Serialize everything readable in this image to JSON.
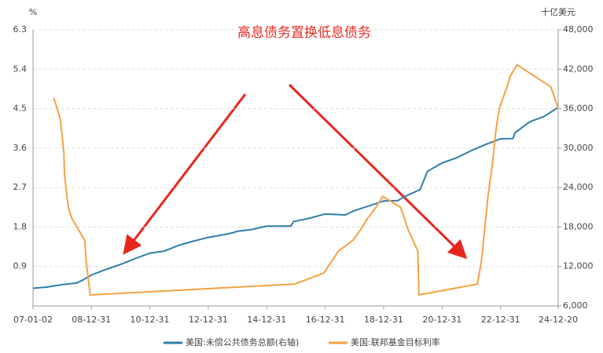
{
  "chart_data": {
    "type": "line",
    "title": "高息债务置换低息债务",
    "y_unit": "%",
    "y2_unit": "十亿美元",
    "xlim": [
      "07-01-02",
      "24-12-20"
    ],
    "xticks": [
      "07-01-02",
      "08-12-31",
      "10-12-31",
      "12-12-31",
      "14-12-31",
      "16-12-31",
      "18-12-31",
      "20-12-31",
      "22-12-31",
      "24-12-20"
    ],
    "ylim": [
      0,
      6.3
    ],
    "yticks": [
      0.9,
      1.8,
      2.7,
      3.6,
      4.5,
      5.4,
      6.3
    ],
    "y2lim": [
      6000,
      48000
    ],
    "y2ticks": [
      {
        "value": 6000,
        "label": "6,000"
      },
      {
        "value": 12000,
        "label": "12,000"
      },
      {
        "value": 18000,
        "label": "18,000"
      },
      {
        "value": 24000,
        "label": "24,000"
      },
      {
        "value": 30000,
        "label": "30,000"
      },
      {
        "value": 36000,
        "label": "36,000"
      },
      {
        "value": 42000,
        "label": "42,000"
      },
      {
        "value": 48000,
        "label": "48,000"
      }
    ],
    "grid": true,
    "series": [
      {
        "name": "美国:未偿公共债务总额(右轴)",
        "color": "#2f7ea8",
        "axis": "y2",
        "x": [
          "07-01-02",
          "07-06-29",
          "07-12-31",
          "08-06-30",
          "08-09-30",
          "08-12-31",
          "09-06-30",
          "09-12-31",
          "10-06-30",
          "10-12-31",
          "11-06-30",
          "11-12-30",
          "12-06-29",
          "12-12-31",
          "13-05-31",
          "13-10-17",
          "13-12-31",
          "14-06-30",
          "14-12-31",
          "15-10-30",
          "15-11-30",
          "16-06-30",
          "16-12-30",
          "17-09-07",
          "17-12-29",
          "18-06-29",
          "18-12-31",
          "19-06-28",
          "19-08-30",
          "19-12-31",
          "20-03-31",
          "20-06-30",
          "20-12-31",
          "21-06-30",
          "21-12-31",
          "22-06-30",
          "22-12-30",
          "23-06-02",
          "23-06-30",
          "23-12-29",
          "24-06-28",
          "24-12-20"
        ],
        "values": [
          8680,
          8870,
          9230,
          9490,
          10020,
          10700,
          11550,
          12310,
          13200,
          14030,
          14340,
          15220,
          15860,
          16430,
          16740,
          17080,
          17350,
          17630,
          18140,
          18150,
          18830,
          19380,
          19980,
          19840,
          20490,
          21200,
          21970,
          22020,
          22500,
          23200,
          23690,
          26480,
          27750,
          28530,
          29620,
          30570,
          31420,
          31460,
          32330,
          34000,
          34830,
          36200
        ]
      },
      {
        "name": "美国:联邦基金目标利率",
        "color": "#f5a142",
        "axis": "y",
        "x": [
          "07-09-18",
          "07-10-31",
          "07-12-11",
          "08-01-22",
          "08-01-30",
          "08-03-18",
          "08-04-30",
          "08-10-08",
          "08-10-29",
          "08-12-16",
          "15-12-16",
          "16-12-14",
          "17-03-15",
          "17-06-14",
          "17-12-13",
          "18-03-21",
          "18-06-13",
          "18-09-26",
          "18-12-19",
          "19-07-31",
          "19-09-18",
          "19-10-30",
          "20-03-03",
          "20-03-15",
          "22-03-16",
          "22-05-04",
          "22-06-15",
          "22-07-27",
          "22-09-21",
          "22-11-02",
          "22-12-14",
          "23-02-01",
          "23-03-22",
          "23-05-03",
          "23-07-26",
          "24-09-18",
          "24-11-07",
          "24-12-18"
        ],
        "values": [
          4.75,
          4.5,
          4.25,
          3.5,
          3.0,
          2.25,
          2.0,
          1.5,
          1.0,
          0.25,
          0.5,
          0.75,
          1.0,
          1.25,
          1.5,
          1.75,
          2.0,
          2.25,
          2.5,
          2.25,
          2.0,
          1.75,
          1.25,
          0.25,
          0.5,
          1.0,
          1.75,
          2.5,
          3.25,
          4.0,
          4.5,
          4.75,
          5.0,
          5.25,
          5.5,
          5.0,
          4.75,
          4.5
        ]
      }
    ]
  }
}
